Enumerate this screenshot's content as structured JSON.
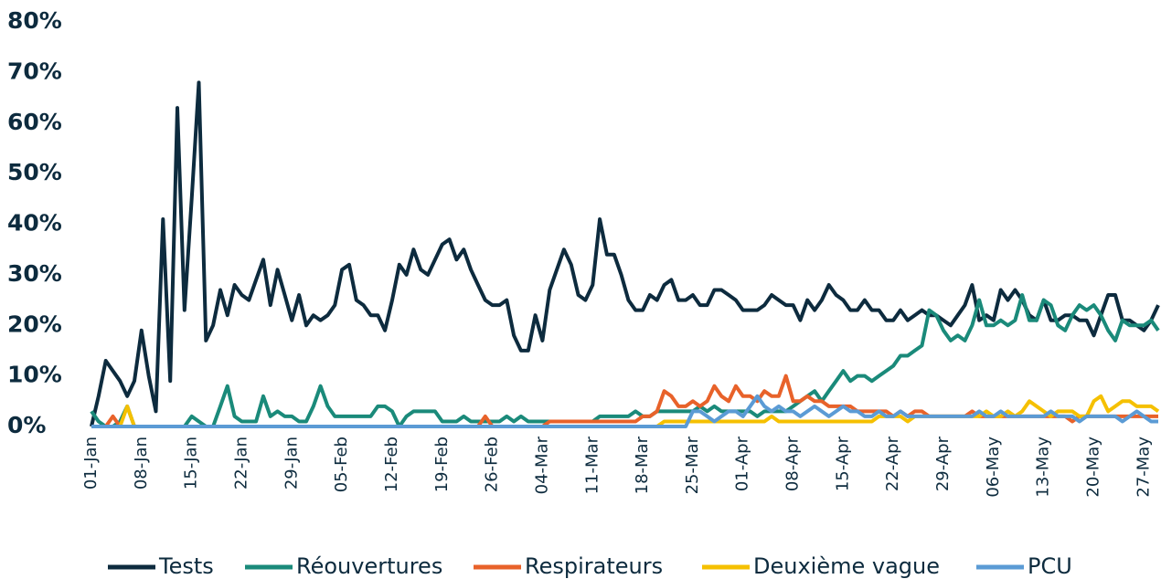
{
  "chart_data": {
    "type": "line",
    "categories": [
      "01-Jan",
      null,
      null,
      null,
      null,
      null,
      null,
      "08-Jan",
      null,
      null,
      null,
      null,
      null,
      null,
      "15-Jan",
      null,
      null,
      null,
      null,
      null,
      null,
      "22-Jan",
      null,
      null,
      null,
      null,
      null,
      null,
      "29-Jan",
      null,
      null,
      null,
      null,
      null,
      null,
      "05-Feb",
      null,
      null,
      null,
      null,
      null,
      null,
      "12-Feb",
      null,
      null,
      null,
      null,
      null,
      null,
      "19-Feb",
      null,
      null,
      null,
      null,
      null,
      null,
      "26-Feb",
      null,
      null,
      null,
      null,
      null,
      null,
      "04-Mar",
      null,
      null,
      null,
      null,
      null,
      null,
      "11-Mar",
      null,
      null,
      null,
      null,
      null,
      null,
      "18-Mar",
      null,
      null,
      null,
      null,
      null,
      null,
      "25-Mar",
      null,
      null,
      null,
      null,
      null,
      null,
      "01-Apr",
      null,
      null,
      null,
      null,
      null,
      null,
      "08-Apr",
      null,
      null,
      null,
      null,
      null,
      null,
      "15-Apr",
      null,
      null,
      null,
      null,
      null,
      null,
      "22-Apr",
      null,
      null,
      null,
      null,
      null,
      null,
      "29-Apr",
      null,
      null,
      null,
      null,
      null,
      null,
      "06-May",
      null,
      null,
      null,
      null,
      null,
      null,
      "13-May",
      null,
      null,
      null,
      null,
      null,
      null,
      "20-May",
      null,
      null,
      null,
      null,
      null,
      null,
      "27-May",
      null,
      null
    ],
    "series": [
      {
        "name": "Tests",
        "color": "#0d2b3e",
        "values": [
          0,
          6,
          13,
          11,
          9,
          6,
          9,
          19,
          10,
          3,
          41,
          9,
          63,
          23,
          45,
          68,
          17,
          20,
          27,
          22,
          28,
          26,
          25,
          29,
          33,
          24,
          31,
          26,
          21,
          26,
          20,
          22,
          21,
          22,
          24,
          31,
          32,
          25,
          24,
          22,
          22,
          19,
          25,
          32,
          30,
          35,
          31,
          30,
          33,
          36,
          37,
          33,
          35,
          31,
          28,
          25,
          24,
          24,
          25,
          18,
          15,
          15,
          22,
          17,
          27,
          31,
          35,
          32,
          26,
          25,
          28,
          41,
          34,
          34,
          30,
          25,
          23,
          23,
          26,
          25,
          28,
          29,
          25,
          25,
          26,
          24,
          24,
          27,
          27,
          26,
          25,
          23,
          23,
          23,
          24,
          26,
          25,
          24,
          24,
          21,
          25,
          23,
          25,
          28,
          26,
          25,
          23,
          23,
          25,
          23,
          23,
          21,
          21,
          23,
          21,
          22,
          23,
          22,
          22,
          21,
          20,
          22,
          24,
          28,
          21,
          22,
          21,
          27,
          25,
          27,
          25,
          22,
          21,
          25,
          21,
          21,
          22,
          22,
          21,
          21,
          18,
          22,
          26,
          26,
          21,
          21,
          20,
          19,
          21,
          24
        ]
      },
      {
        "name": "Réouvertures",
        "color": "#1a8a7a",
        "values": [
          3,
          1,
          0,
          0,
          1,
          4,
          0,
          0,
          0,
          0,
          0,
          0,
          0,
          0,
          2,
          1,
          0,
          0,
          4,
          8,
          2,
          1,
          1,
          1,
          6,
          2,
          3,
          2,
          2,
          1,
          1,
          4,
          8,
          4,
          2,
          2,
          2,
          2,
          2,
          2,
          4,
          4,
          3,
          0,
          2,
          3,
          3,
          3,
          3,
          1,
          1,
          1,
          2,
          1,
          1,
          1,
          1,
          1,
          2,
          1,
          2,
          1,
          1,
          1,
          1,
          1,
          1,
          1,
          1,
          1,
          1,
          2,
          2,
          2,
          2,
          2,
          3,
          2,
          2,
          3,
          3,
          3,
          3,
          3,
          3,
          4,
          3,
          4,
          3,
          3,
          3,
          3,
          3,
          2,
          3,
          3,
          3,
          3,
          4,
          5,
          6,
          7,
          5,
          7,
          9,
          11,
          9,
          10,
          10,
          9,
          10,
          11,
          12,
          14,
          14,
          15,
          16,
          23,
          22,
          19,
          17,
          18,
          17,
          20,
          25,
          20,
          20,
          21,
          20,
          21,
          26,
          21,
          21,
          25,
          24,
          20,
          19,
          22,
          24,
          23,
          24,
          22,
          19,
          17,
          21,
          20,
          20,
          20,
          21,
          19
        ]
      },
      {
        "name": "Respirateurs",
        "color": "#e8622a",
        "values": [
          0,
          0,
          0,
          2,
          0,
          0,
          0,
          0,
          0,
          0,
          0,
          0,
          0,
          0,
          0,
          0,
          0,
          0,
          0,
          0,
          0,
          0,
          0,
          0,
          0,
          0,
          0,
          0,
          0,
          0,
          0,
          0,
          0,
          0,
          0,
          0,
          0,
          0,
          0,
          0,
          0,
          0,
          0,
          0,
          0,
          0,
          0,
          0,
          0,
          0,
          0,
          0,
          0,
          0,
          0,
          2,
          0,
          0,
          0,
          0,
          0,
          0,
          0,
          0,
          1,
          1,
          1,
          1,
          1,
          1,
          1,
          1,
          1,
          1,
          1,
          1,
          1,
          2,
          2,
          3,
          7,
          6,
          4,
          4,
          5,
          4,
          5,
          8,
          6,
          5,
          8,
          6,
          6,
          5,
          7,
          6,
          6,
          10,
          5,
          5,
          6,
          5,
          5,
          4,
          4,
          4,
          4,
          3,
          3,
          3,
          3,
          3,
          2,
          3,
          2,
          3,
          3,
          2,
          2,
          2,
          2,
          2,
          2,
          3,
          2,
          2,
          2,
          2,
          2,
          2,
          2,
          2,
          2,
          2,
          2,
          2,
          2,
          1,
          2,
          2,
          2,
          2,
          2,
          2,
          2,
          2,
          2,
          2,
          2,
          2
        ]
      },
      {
        "name": "Deuxième vague",
        "color": "#f5c000",
        "values": [
          0,
          0,
          0,
          0,
          0,
          4,
          0,
          0,
          0,
          0,
          0,
          0,
          0,
          0,
          0,
          0,
          0,
          0,
          0,
          0,
          0,
          0,
          0,
          0,
          0,
          0,
          0,
          0,
          0,
          0,
          0,
          0,
          0,
          0,
          0,
          0,
          0,
          0,
          0,
          0,
          0,
          0,
          0,
          0,
          0,
          0,
          0,
          0,
          0,
          0,
          0,
          0,
          0,
          0,
          0,
          0,
          0,
          0,
          0,
          0,
          0,
          0,
          0,
          0,
          0,
          0,
          0,
          0,
          0,
          0,
          0,
          0,
          0,
          0,
          0,
          0,
          0,
          0,
          0,
          0,
          1,
          1,
          1,
          1,
          1,
          1,
          1,
          1,
          1,
          1,
          1,
          1,
          1,
          1,
          1,
          2,
          1,
          1,
          1,
          1,
          1,
          1,
          1,
          1,
          1,
          1,
          1,
          1,
          1,
          1,
          2,
          2,
          2,
          2,
          1,
          2,
          2,
          2,
          2,
          2,
          2,
          2,
          2,
          2,
          2,
          3,
          2,
          2,
          3,
          2,
          3,
          5,
          4,
          3,
          2,
          3,
          3,
          3,
          2,
          2,
          5,
          6,
          3,
          4,
          5,
          5,
          4,
          4,
          4,
          3
        ]
      },
      {
        "name": "PCU",
        "color": "#5b9bd5",
        "values": [
          0,
          0,
          0,
          0,
          0,
          0,
          0,
          0,
          0,
          0,
          0,
          0,
          0,
          0,
          0,
          0,
          0,
          0,
          0,
          0,
          0,
          0,
          0,
          0,
          0,
          0,
          0,
          0,
          0,
          0,
          0,
          0,
          0,
          0,
          0,
          0,
          0,
          0,
          0,
          0,
          0,
          0,
          0,
          0,
          0,
          0,
          0,
          0,
          0,
          0,
          0,
          0,
          0,
          0,
          0,
          0,
          0,
          0,
          0,
          0,
          0,
          0,
          0,
          0,
          0,
          0,
          0,
          0,
          0,
          0,
          0,
          0,
          0,
          0,
          0,
          0,
          0,
          0,
          0,
          0,
          0,
          0,
          0,
          0,
          3,
          3,
          2,
          1,
          2,
          3,
          3,
          2,
          4,
          6,
          4,
          3,
          4,
          3,
          3,
          2,
          3,
          4,
          3,
          2,
          3,
          4,
          3,
          3,
          2,
          2,
          3,
          2,
          2,
          3,
          2,
          2,
          2,
          2,
          2,
          2,
          2,
          2,
          2,
          2,
          3,
          2,
          2,
          3,
          2,
          2,
          2,
          2,
          2,
          2,
          3,
          2,
          2,
          2,
          1,
          2,
          2,
          2,
          2,
          2,
          1,
          2,
          3,
          2,
          1,
          1
        ]
      }
    ],
    "ylim": [
      0,
      80
    ],
    "yticks": [
      {
        "value": 0,
        "label": "0%"
      },
      {
        "value": 10,
        "label": "10%"
      },
      {
        "value": 20,
        "label": "20%"
      },
      {
        "value": 30,
        "label": "30%"
      },
      {
        "value": 40,
        "label": "40%"
      },
      {
        "value": 50,
        "label": "50%"
      },
      {
        "value": 60,
        "label": "60%"
      },
      {
        "value": 70,
        "label": "70%"
      },
      {
        "value": 80,
        "label": "80%"
      }
    ],
    "grid": false,
    "legend": "bottom"
  }
}
